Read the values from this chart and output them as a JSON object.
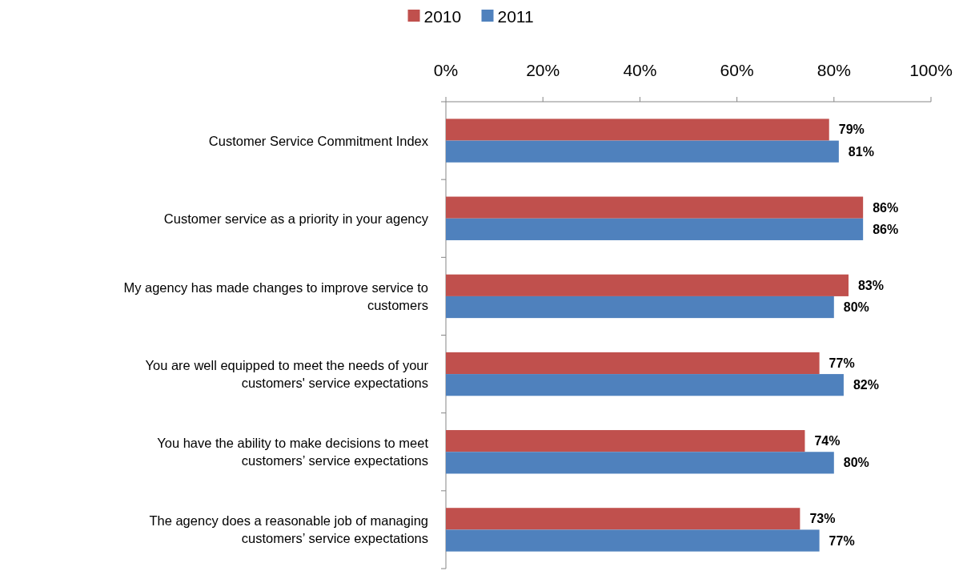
{
  "chart_data": {
    "type": "bar",
    "orientation": "horizontal",
    "categories": [
      "Customer Service Commitment Index",
      "Customer service as a priority in your agency",
      "My agency has made changes to improve service to customers",
      "You are well equipped to meet the needs of your customers' service expectations",
      "You have the ability to make decisions to meet customers’ service expectations",
      "The agency does a reasonable job of managing customers’ service expectations"
    ],
    "series": [
      {
        "name": "2010",
        "color": "#c0504d",
        "values": [
          79,
          86,
          83,
          77,
          74,
          73
        ],
        "value_labels": [
          "79%",
          "86%",
          "83%",
          "77%",
          "74%",
          "73%"
        ]
      },
      {
        "name": "2011",
        "color": "#4f81bd",
        "values": [
          81,
          86,
          80,
          82,
          80,
          77
        ],
        "value_labels": [
          "81%",
          "86%",
          "80%",
          "82%",
          "80%",
          "77%"
        ]
      }
    ],
    "xlim": [
      0,
      100
    ],
    "xticks": [
      {
        "value": 0,
        "label": "0%"
      },
      {
        "value": 20,
        "label": "20%"
      },
      {
        "value": 40,
        "label": "40%"
      },
      {
        "value": 60,
        "label": "60%"
      },
      {
        "value": 80,
        "label": "80%"
      },
      {
        "value": 100,
        "label": "100%"
      }
    ],
    "grid": false,
    "legend": "top"
  }
}
